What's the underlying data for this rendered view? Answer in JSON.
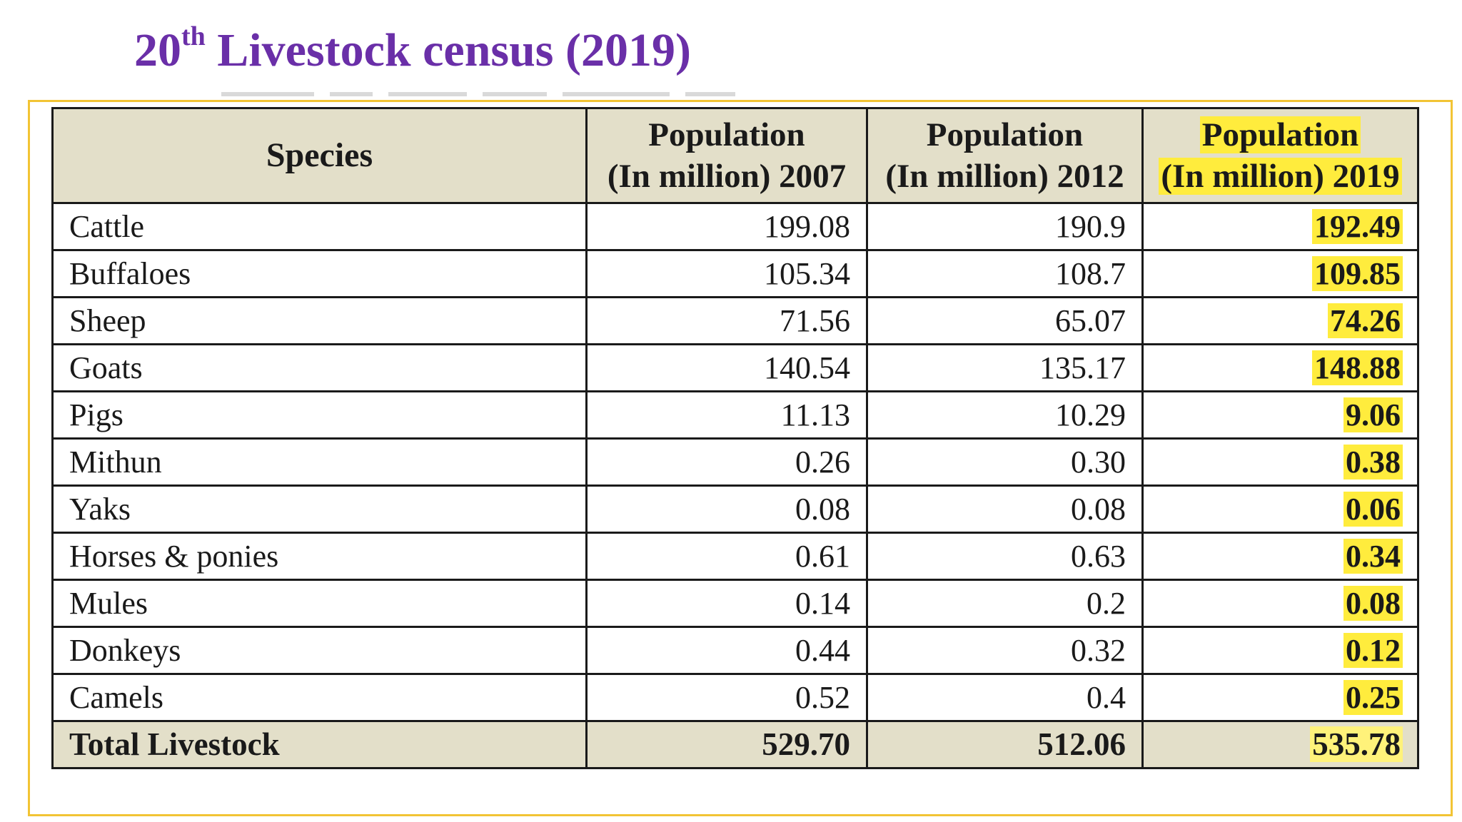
{
  "title": {
    "main": "20",
    "sup": "th",
    "rest": " Livestock census (2019)"
  },
  "table": {
    "headers": {
      "species": "Species",
      "col_2007": [
        "Population",
        "(In million) 2007"
      ],
      "col_2012": [
        "Population",
        "(In million) 2012"
      ],
      "col_2019": [
        "Population",
        "(In million) 2019"
      ]
    },
    "rows": [
      {
        "species": "Cattle",
        "p2007": "199.08",
        "p2012": "190.9",
        "p2019": "192.49"
      },
      {
        "species": "Buffaloes",
        "p2007": "105.34",
        "p2012": "108.7",
        "p2019": "109.85"
      },
      {
        "species": "Sheep",
        "p2007": "71.56",
        "p2012": "65.07",
        "p2019": "74.26"
      },
      {
        "species": "Goats",
        "p2007": "140.54",
        "p2012": "135.17",
        "p2019": "148.88"
      },
      {
        "species": "Pigs",
        "p2007": "11.13",
        "p2012": "10.29",
        "p2019": "9.06"
      },
      {
        "species": "Mithun",
        "p2007": "0.26",
        "p2012": "0.30",
        "p2019": "0.38"
      },
      {
        "species": "Yaks",
        "p2007": "0.08",
        "p2012": "0.08",
        "p2019": "0.06"
      },
      {
        "species": "Horses & ponies",
        "p2007": "0.61",
        "p2012": "0.63",
        "p2019": "0.34"
      },
      {
        "species": "Mules",
        "p2007": "0.14",
        "p2012": "0.2",
        "p2019": "0.08"
      },
      {
        "species": "Donkeys",
        "p2007": "0.44",
        "p2012": "0.32",
        "p2019": "0.12"
      },
      {
        "species": "Camels",
        "p2007": "0.52",
        "p2012": "0.4",
        "p2019": "0.25"
      }
    ],
    "total": {
      "species": "Total Livestock",
      "p2007": "529.70",
      "p2012": "512.06",
      "p2019": "535.78"
    }
  },
  "colors": {
    "title": "#6a2fa8",
    "frame": "#f2c434",
    "header_bg": "#e3dfc9",
    "highlight": "#ffec3d"
  }
}
